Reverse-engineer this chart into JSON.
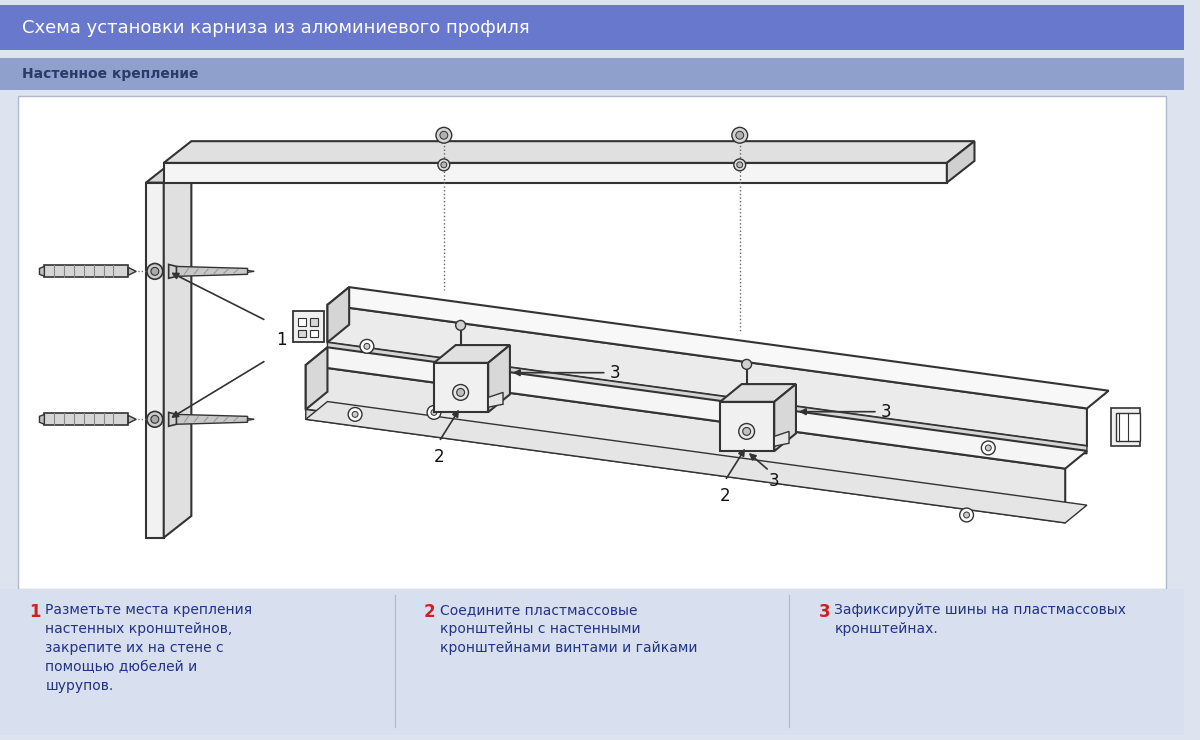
{
  "title": "Схема установки карниза из алюминиевого профиля",
  "subtitle": "Настенное крепление",
  "bg_color": "#dde4f0",
  "header_color": "#6878cc",
  "subheader_color": "#8fa0cc",
  "header_text_color": "#ffffff",
  "subheader_text_color": "#2a3a6a",
  "footer_bg_color": "#d8dfee",
  "diagram_bg": "#ffffff",
  "step1_num": "1",
  "step1_text": "Разметьте места крепления\nнастенных кронштейнов,\nзакрепите их на стене с\nпомощью дюбелей и\nшурупов.",
  "step2_num": "2",
  "step2_text": "Соедините пластмассовые\nкронштейны с настенными\nкронштейнами винтами и гайками",
  "step3_num": "3",
  "step3_text": "Зафиксируйте шины на пластмассовых\nкронштейнах.",
  "step_num_color": "#cc2222",
  "step_text_color": "#223388",
  "line_color": "#333333",
  "fill_light": "#f0f0f0",
  "fill_mid": "#d8d8d8",
  "fill_dark": "#b8b8b8",
  "title_fontsize": 13,
  "subtitle_fontsize": 10,
  "step_num_fontsize": 12,
  "step_text_fontsize": 10,
  "label_fontsize": 11
}
